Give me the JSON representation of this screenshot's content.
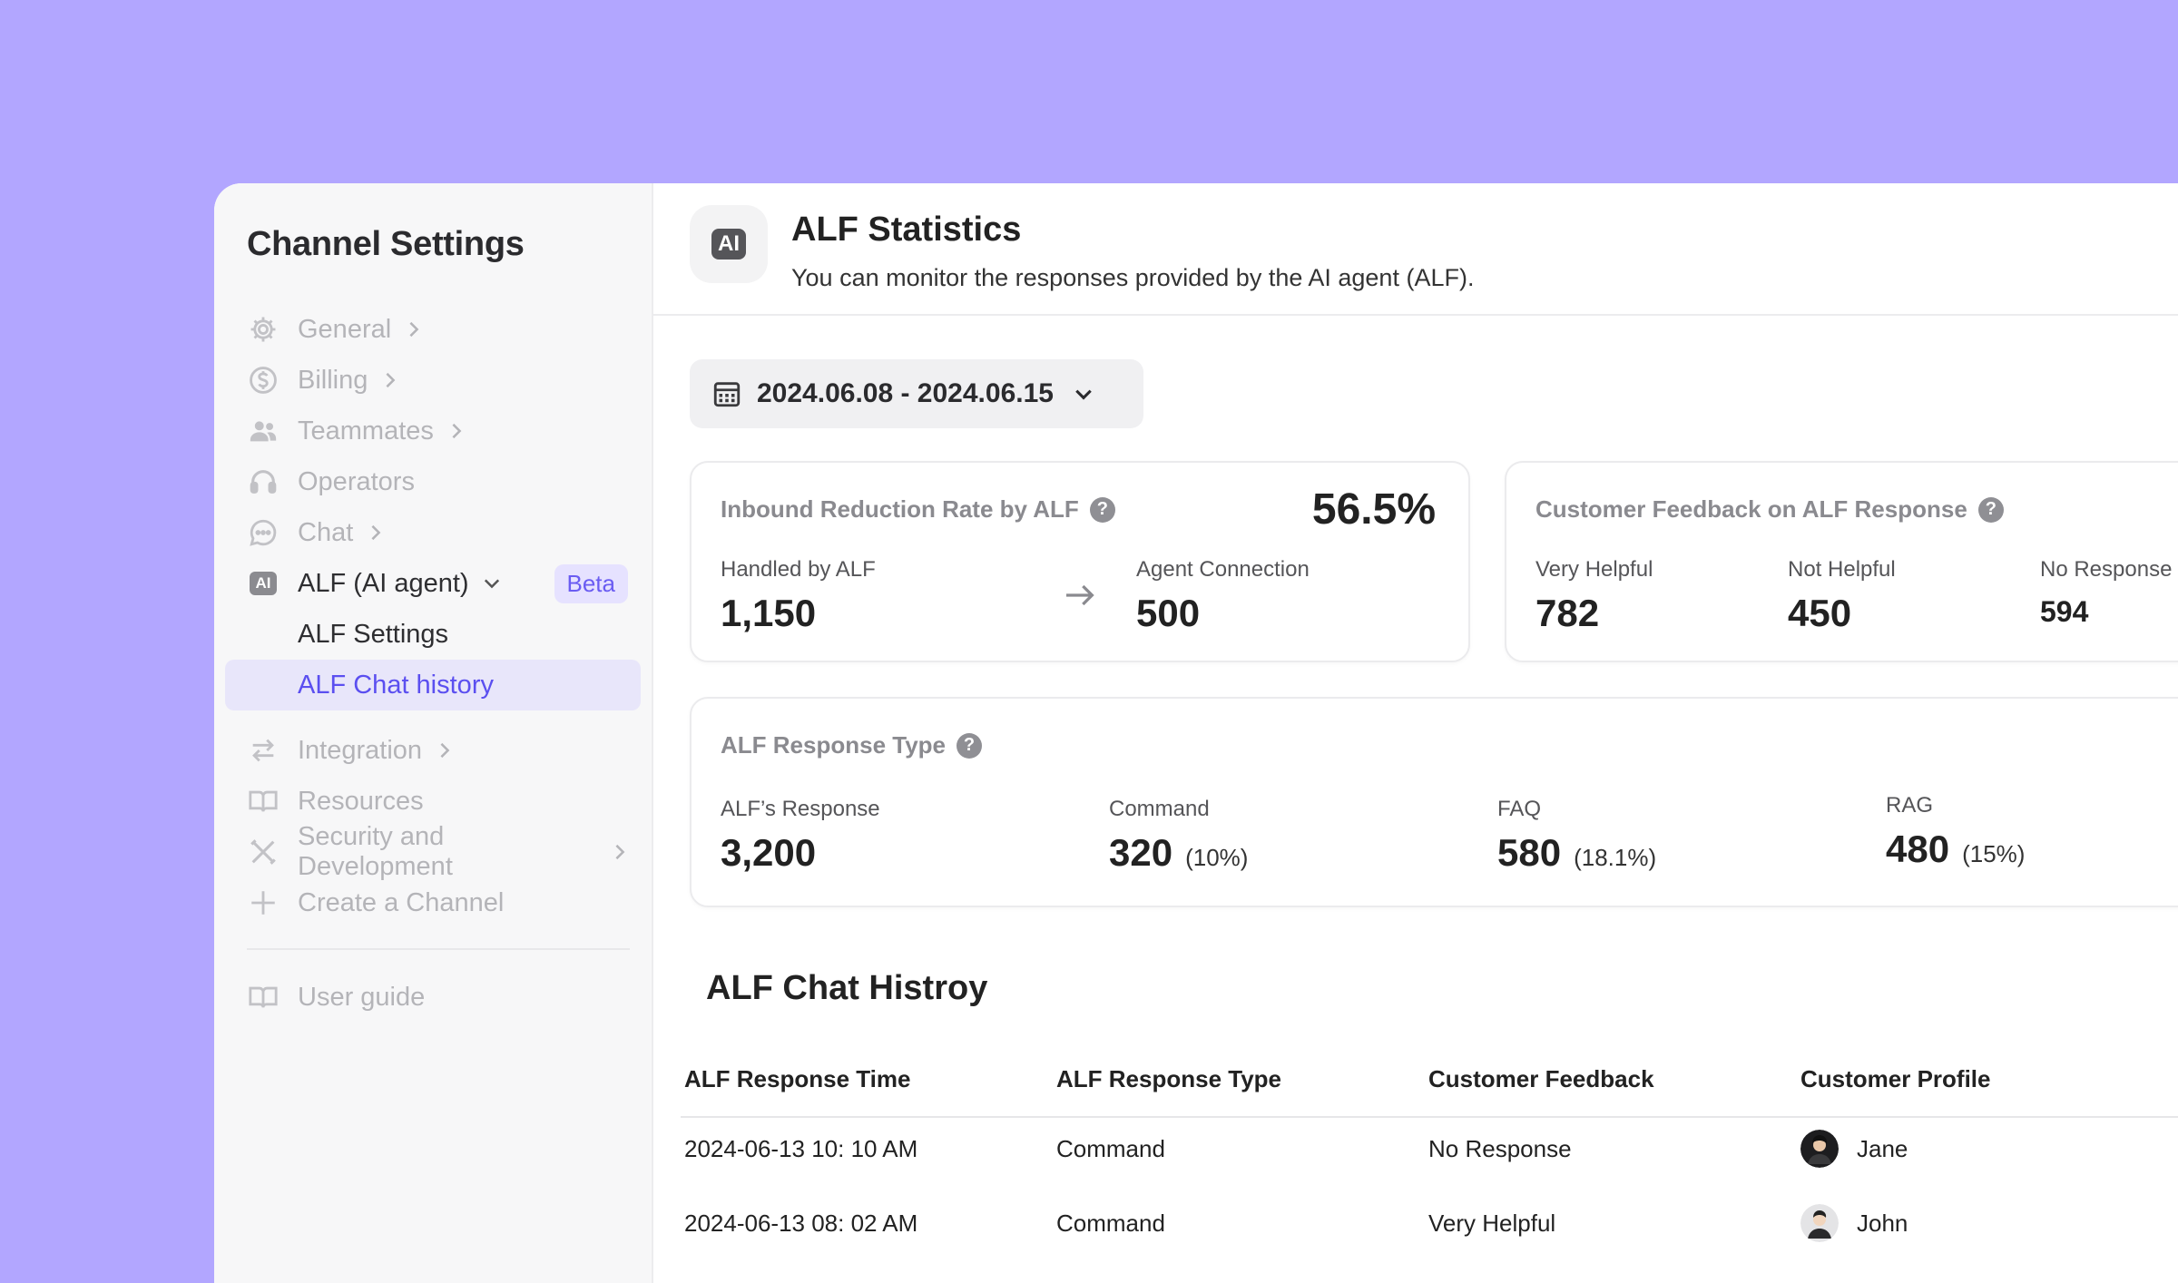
{
  "sidebar": {
    "title": "Channel Settings",
    "items": [
      {
        "label": "General",
        "icon": "gear-icon",
        "chevron": true
      },
      {
        "label": "Billing",
        "icon": "dollar-icon",
        "chevron": true
      },
      {
        "label": "Teammates",
        "icon": "people-icon",
        "chevron": true
      },
      {
        "label": "Operators",
        "icon": "headset-icon",
        "chevron": false
      },
      {
        "label": "Chat",
        "icon": "chat-icon",
        "chevron": true
      }
    ],
    "alf": {
      "label": "ALF (AI agent)",
      "icon_text": "AI",
      "badge": "Beta",
      "children": [
        "ALF Settings",
        "ALF Chat history"
      ]
    },
    "items2": [
      {
        "label": "Integration",
        "icon": "swap-arrows-icon",
        "chevron": true
      },
      {
        "label": "Resources",
        "icon": "book-icon",
        "chevron": false
      },
      {
        "label": "Security and Development",
        "icon": "tools-icon",
        "chevron": true
      },
      {
        "label": "Create a Channel",
        "icon": "plus-icon",
        "chevron": false
      }
    ],
    "user_guide": "User guide"
  },
  "header": {
    "icon_text": "AI",
    "title": "ALF Statistics",
    "subtitle": "You can monitor the responses provided by the AI agent (ALF)."
  },
  "date_range": "2024.06.08 - 2024.06.15",
  "inbound": {
    "title": "Inbound Reduction Rate by ALF",
    "rate": "56.5%",
    "handled_label": "Handled by ALF",
    "handled_value": "1,150",
    "agent_label": "Agent Connection",
    "agent_value": "500"
  },
  "feedback": {
    "title": "Customer Feedback on ALF Response",
    "very_helpful_label": "Very Helpful",
    "very_helpful_value": "782",
    "not_helpful_label": "Not Helpful",
    "not_helpful_value": "450",
    "no_response_label": "No Response",
    "no_response_value": "594"
  },
  "response_type": {
    "title": "ALF Response Type",
    "total_label": "ALF’s Response",
    "total_value": "3,200",
    "command_label": "Command",
    "command_value": "320",
    "command_pct": "(10%)",
    "faq_label": "FAQ",
    "faq_value": "580",
    "faq_pct": "(18.1%)",
    "rag_label": "RAG",
    "rag_value": "480",
    "rag_pct": "(15%)"
  },
  "history": {
    "title": "ALF Chat Histroy",
    "columns": [
      "ALF Response Time",
      "ALF Response Type",
      "Customer Feedback",
      "Customer Profile"
    ],
    "rows": [
      {
        "time": "2024-06-13 10: 10 AM",
        "type": "Command",
        "feedback": "No Response",
        "profile": "Jane"
      },
      {
        "time": "2024-06-13 08: 02 AM",
        "type": "Command",
        "feedback": "Very Helpful",
        "profile": "John"
      }
    ]
  },
  "colors": {
    "background": "#b2a6ff",
    "accent": "#5b4ff0",
    "selected_bg": "#e8e6fa"
  }
}
